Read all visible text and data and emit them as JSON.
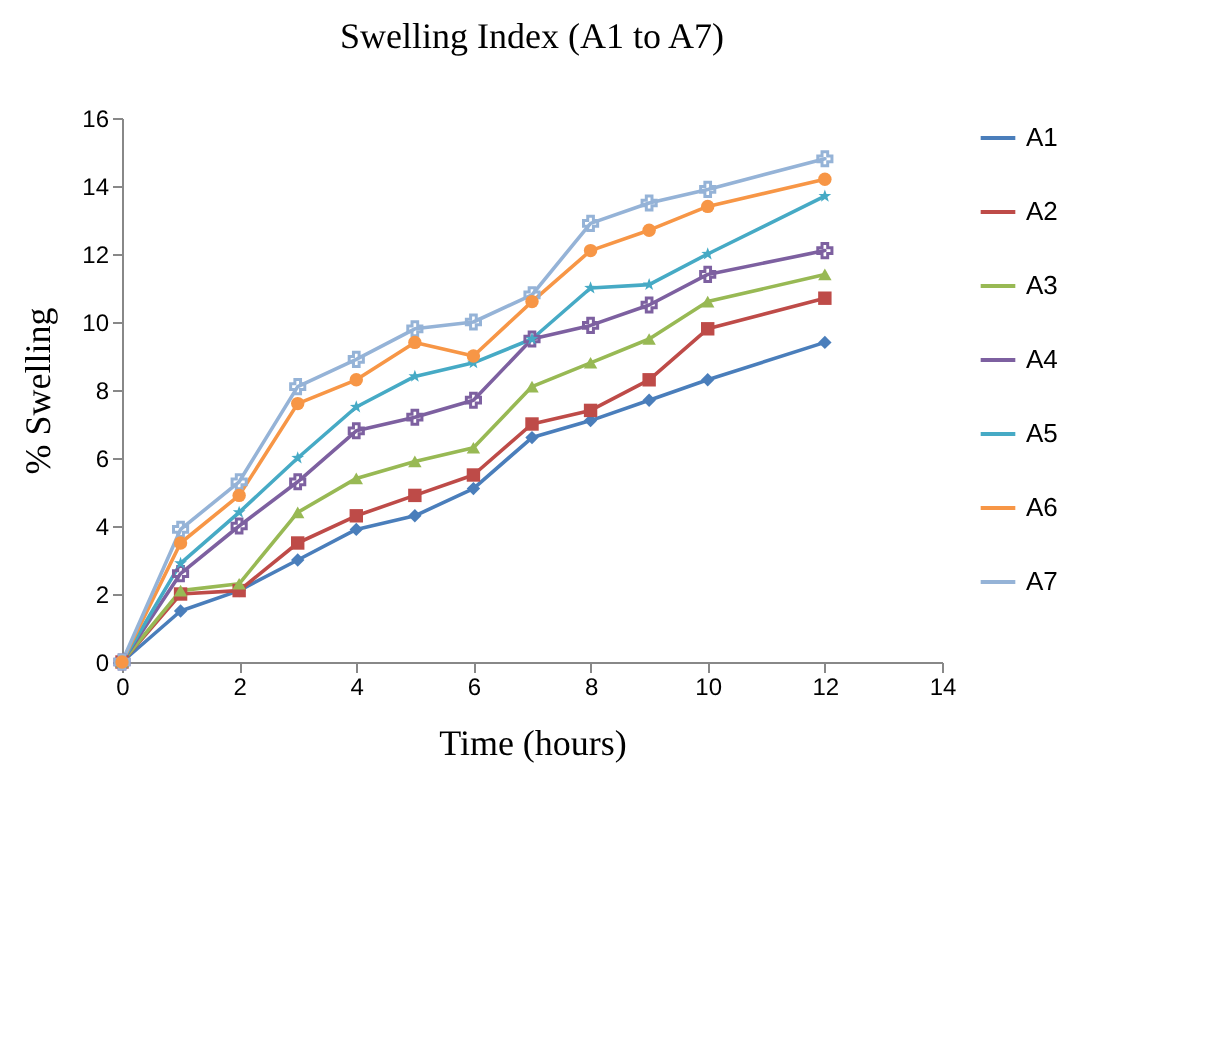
{
  "chart_data": {
    "type": "line",
    "title": "Swelling Index (A1 to A7)",
    "xlabel": "Time (hours)",
    "ylabel": "% Swelling",
    "x": [
      0,
      1,
      2,
      3,
      4,
      5,
      6,
      7,
      8,
      9,
      10,
      12
    ],
    "xlim": [
      0,
      14
    ],
    "xticks": [
      0,
      2,
      4,
      6,
      8,
      10,
      12,
      14
    ],
    "ylim": [
      0,
      16
    ],
    "yticks": [
      0,
      2,
      4,
      6,
      8,
      10,
      12,
      14,
      16
    ],
    "grid": false,
    "legend": "right",
    "series": [
      {
        "name": "A1",
        "color": "#4a7ebb",
        "marker": "diamond",
        "values": [
          0,
          1.5,
          2.1,
          3.0,
          3.9,
          4.3,
          5.1,
          6.6,
          7.1,
          7.7,
          8.3,
          9.4
        ]
      },
      {
        "name": "A2",
        "color": "#be4b48",
        "marker": "square",
        "values": [
          0,
          2.0,
          2.1,
          3.5,
          4.3,
          4.9,
          5.5,
          7.0,
          7.4,
          8.3,
          9.8,
          10.7
        ]
      },
      {
        "name": "A3",
        "color": "#98b954",
        "marker": "triangle",
        "values": [
          0,
          2.1,
          2.3,
          4.4,
          5.4,
          5.9,
          6.3,
          8.1,
          8.8,
          9.5,
          10.6,
          11.4
        ]
      },
      {
        "name": "A4",
        "color": "#7d60a0",
        "marker": "cross",
        "values": [
          0,
          2.6,
          4.0,
          5.3,
          6.8,
          7.2,
          7.7,
          9.5,
          9.9,
          10.5,
          11.4,
          12.1
        ]
      },
      {
        "name": "A5",
        "color": "#46aac5",
        "marker": "star",
        "values": [
          0,
          2.9,
          4.4,
          6.0,
          7.5,
          8.4,
          8.8,
          9.5,
          11.0,
          11.1,
          12.0,
          13.7
        ]
      },
      {
        "name": "A6",
        "color": "#f79646",
        "marker": "circle",
        "values": [
          0,
          3.5,
          4.9,
          7.6,
          8.3,
          9.4,
          9.0,
          10.6,
          12.1,
          12.7,
          13.4,
          14.2
        ]
      },
      {
        "name": "A7",
        "color": "#95b3d7",
        "marker": "cross",
        "values": [
          0,
          3.9,
          5.3,
          8.1,
          8.9,
          9.8,
          10.0,
          10.8,
          12.9,
          13.5,
          13.9,
          14.8
        ]
      }
    ]
  }
}
